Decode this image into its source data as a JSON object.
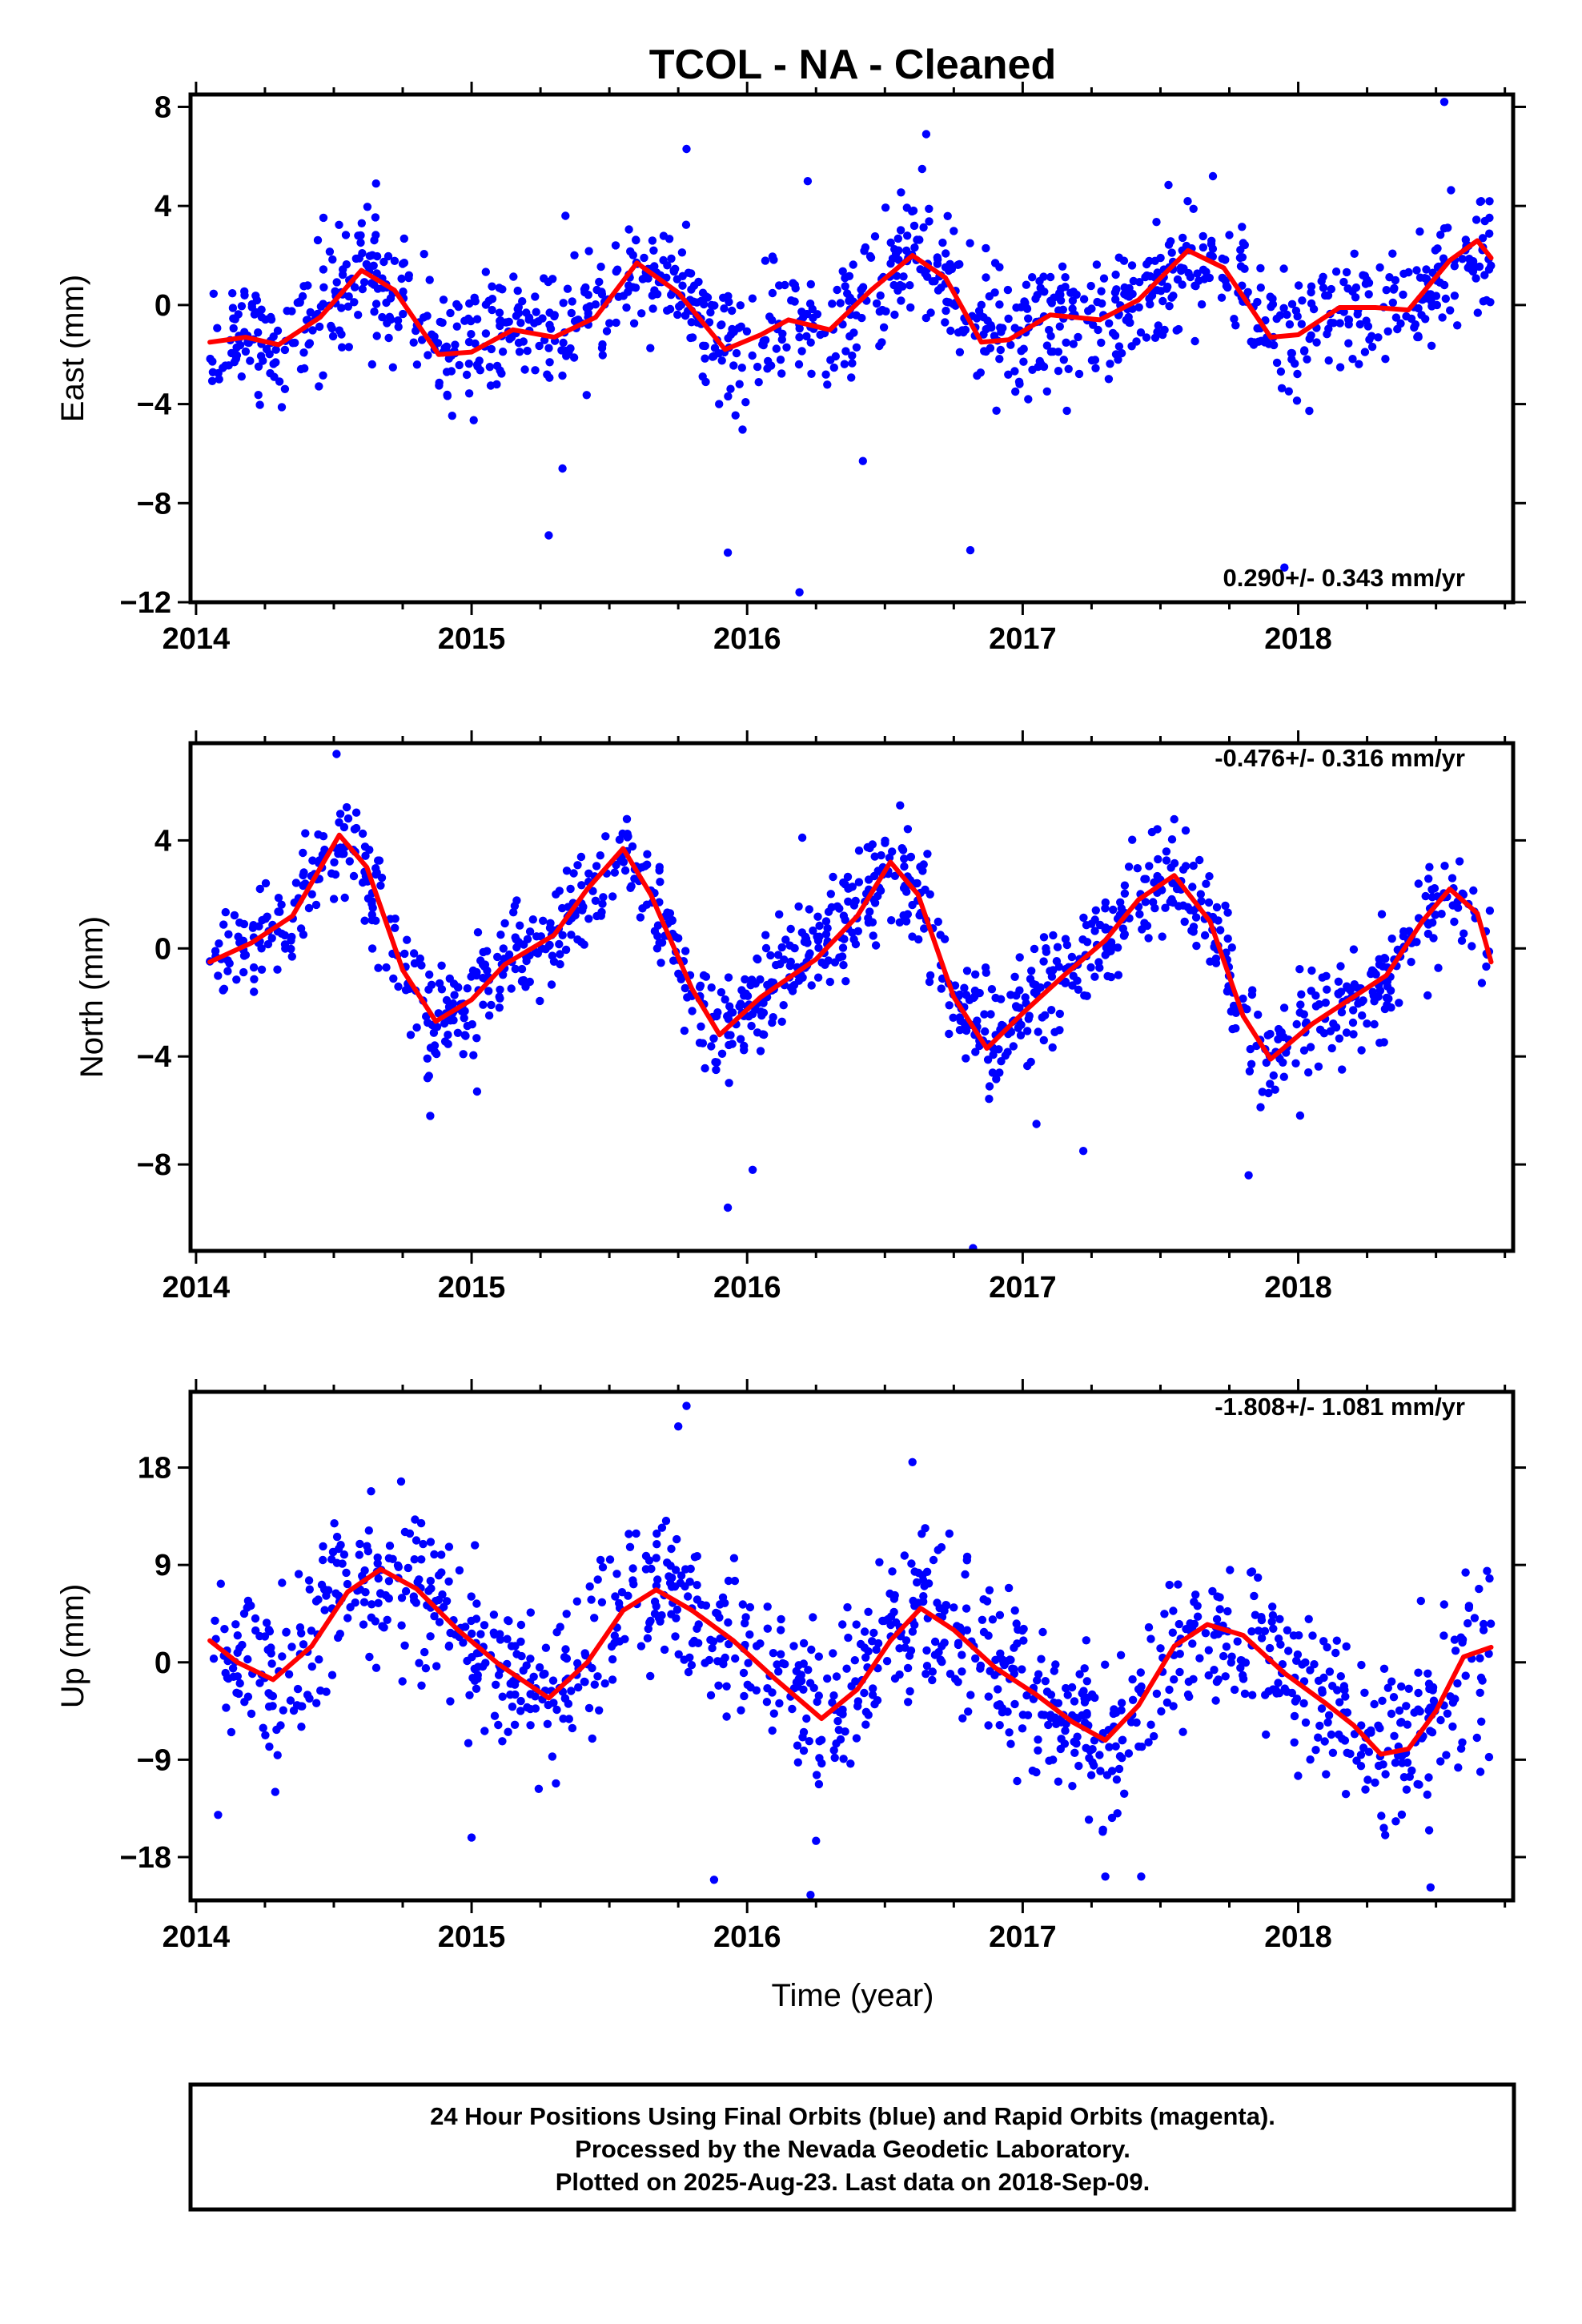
{
  "figure": {
    "title": "TCOL  - NA - Cleaned",
    "xlabel": "Time (year)",
    "footer_lines": [
      "24 Hour Positions Using Final Orbits (blue) and Rapid Orbits (magenta).",
      "Processed by the Nevada Geodetic Laboratory.",
      "Plotted on 2025-Aug-23. Last data on 2018-Sep-09."
    ]
  },
  "colors": {
    "points": "#0000ff",
    "fit": "#ff0000",
    "axes": "#000000"
  },
  "chart_data": [
    {
      "type": "scatter",
      "ylabel": "East (mm)",
      "rate_label": "0.290+/- 0.343 mm/yr",
      "xlim": [
        2013.98,
        2018.78
      ],
      "ylim": [
        -12,
        8.5
      ],
      "xticks": [
        2014,
        2015,
        2016,
        2017,
        2018
      ],
      "yticks": [
        -12,
        -8,
        -4,
        0,
        4,
        8
      ],
      "ytick_labels": [
        "−12",
        "−8",
        "−4",
        "0",
        "4",
        "8"
      ],
      "series": [
        {
          "style": "points",
          "x_start": 2014.05,
          "x_end": 2018.7,
          "seed": 11,
          "noise_sd": 1.25,
          "count": 1250,
          "outliers": [
            [
              2015.28,
              -9.3
            ],
            [
              2015.93,
              -10.0
            ],
            [
              2016.19,
              -11.6
            ],
            [
              2016.81,
              -9.9
            ],
            [
              2017.95,
              -10.6
            ],
            [
              2018.53,
              8.2
            ],
            [
              2016.22,
              5.0
            ],
            [
              2015.78,
              6.3
            ],
            [
              2016.65,
              6.9
            ],
            [
              2015.33,
              -6.6
            ],
            [
              2016.42,
              -6.3
            ]
          ]
        },
        {
          "style": "line",
          "knots": [
            [
              2014.05,
              -1.5
            ],
            [
              2014.18,
              -1.3
            ],
            [
              2014.3,
              -1.6
            ],
            [
              2014.45,
              -0.5
            ],
            [
              2014.6,
              1.4
            ],
            [
              2014.72,
              0.6
            ],
            [
              2014.88,
              -2.0
            ],
            [
              2015.0,
              -1.9
            ],
            [
              2015.15,
              -1.0
            ],
            [
              2015.3,
              -1.3
            ],
            [
              2015.45,
              -0.5
            ],
            [
              2015.6,
              1.7
            ],
            [
              2015.75,
              0.5
            ],
            [
              2015.92,
              -1.8
            ],
            [
              2016.05,
              -1.2
            ],
            [
              2016.15,
              -0.6
            ],
            [
              2016.3,
              -1.0
            ],
            [
              2016.45,
              0.6
            ],
            [
              2016.6,
              2.0
            ],
            [
              2016.72,
              1.1
            ],
            [
              2016.85,
              -1.5
            ],
            [
              2016.95,
              -1.4
            ],
            [
              2017.1,
              -0.4
            ],
            [
              2017.28,
              -0.6
            ],
            [
              2017.42,
              0.2
            ],
            [
              2017.6,
              2.2
            ],
            [
              2017.73,
              1.5
            ],
            [
              2017.9,
              -1.3
            ],
            [
              2018.0,
              -1.2
            ],
            [
              2018.15,
              -0.1
            ],
            [
              2018.28,
              -0.1
            ],
            [
              2018.4,
              -0.2
            ],
            [
              2018.55,
              1.8
            ],
            [
              2018.65,
              2.6
            ],
            [
              2018.7,
              1.9
            ]
          ]
        }
      ]
    },
    {
      "type": "scatter",
      "ylabel": "North (mm)",
      "rate_label": "-0.476+/- 0.316 mm/yr",
      "xlim": [
        2013.98,
        2018.78
      ],
      "ylim": [
        -11.2,
        7.6
      ],
      "xticks": [
        2014,
        2015,
        2016,
        2017,
        2018
      ],
      "yticks": [
        -8,
        -4,
        0,
        4
      ],
      "ytick_labels": [
        "−8",
        "−4",
        "0",
        "4"
      ],
      "series": [
        {
          "style": "points",
          "x_start": 2014.05,
          "x_end": 2018.7,
          "seed": 23,
          "noise_sd": 0.95,
          "count": 1250,
          "outliers": [
            [
              2014.51,
              7.2
            ],
            [
              2015.93,
              -9.6
            ],
            [
              2016.82,
              -11.1
            ],
            [
              2017.22,
              -7.5
            ],
            [
              2016.02,
              -8.2
            ],
            [
              2017.82,
              -8.4
            ],
            [
              2014.85,
              -6.2
            ],
            [
              2015.02,
              -5.3
            ],
            [
              2016.2,
              4.1
            ],
            [
              2017.05,
              -6.5
            ]
          ]
        },
        {
          "style": "line",
          "knots": [
            [
              2014.05,
              -0.5
            ],
            [
              2014.2,
              0.2
            ],
            [
              2014.35,
              1.2
            ],
            [
              2014.52,
              4.2
            ],
            [
              2014.62,
              3.0
            ],
            [
              2014.75,
              -0.8
            ],
            [
              2014.87,
              -2.7
            ],
            [
              2015.0,
              -1.9
            ],
            [
              2015.12,
              -0.6
            ],
            [
              2015.3,
              0.5
            ],
            [
              2015.42,
              2.2
            ],
            [
              2015.55,
              3.7
            ],
            [
              2015.65,
              2.0
            ],
            [
              2015.8,
              -1.5
            ],
            [
              2015.9,
              -3.2
            ],
            [
              2016.05,
              -1.8
            ],
            [
              2016.25,
              -0.4
            ],
            [
              2016.4,
              1.2
            ],
            [
              2016.52,
              3.2
            ],
            [
              2016.62,
              2.0
            ],
            [
              2016.75,
              -1.8
            ],
            [
              2016.87,
              -3.7
            ],
            [
              2017.0,
              -2.4
            ],
            [
              2017.15,
              -1.0
            ],
            [
              2017.3,
              0.3
            ],
            [
              2017.42,
              1.8
            ],
            [
              2017.55,
              2.7
            ],
            [
              2017.68,
              1.0
            ],
            [
              2017.8,
              -2.5
            ],
            [
              2017.9,
              -4.1
            ],
            [
              2018.05,
              -2.8
            ],
            [
              2018.2,
              -1.8
            ],
            [
              2018.32,
              -1.0
            ],
            [
              2018.45,
              1.0
            ],
            [
              2018.55,
              2.2
            ],
            [
              2018.65,
              1.3
            ],
            [
              2018.7,
              -0.5
            ]
          ]
        }
      ]
    },
    {
      "type": "scatter",
      "ylabel": "Up (mm)",
      "rate_label": "-1.808+/- 1.081 mm/yr",
      "xlim": [
        2013.98,
        2018.78
      ],
      "ylim": [
        -22,
        25
      ],
      "xticks": [
        2014,
        2015,
        2016,
        2017,
        2018
      ],
      "yticks": [
        -18,
        -9,
        0,
        9,
        18
      ],
      "ytick_labels": [
        "−18",
        "−9",
        "0",
        "9",
        "18"
      ],
      "series": [
        {
          "style": "points",
          "x_start": 2014.05,
          "x_end": 2018.7,
          "seed": 37,
          "noise_sd": 3.6,
          "count": 1250,
          "outliers": [
            [
              2015.78,
              23.7
            ],
            [
              2015.75,
              21.8
            ],
            [
              2015.88,
              -20.1
            ],
            [
              2016.23,
              -21.5
            ],
            [
              2016.6,
              18.5
            ],
            [
              2017.3,
              -19.8
            ],
            [
              2017.43,
              -19.8
            ],
            [
              2018.48,
              -20.8
            ],
            [
              2014.08,
              -14.1
            ],
            [
              2016.25,
              -16.5
            ],
            [
              2015.0,
              -16.2
            ]
          ]
        },
        {
          "style": "line",
          "knots": [
            [
              2014.05,
              2.0
            ],
            [
              2014.15,
              0.0
            ],
            [
              2014.28,
              -1.6
            ],
            [
              2014.42,
              1.5
            ],
            [
              2014.55,
              6.5
            ],
            [
              2014.67,
              8.6
            ],
            [
              2014.8,
              6.8
            ],
            [
              2014.95,
              3.0
            ],
            [
              2015.1,
              -0.2
            ],
            [
              2015.28,
              -3.3
            ],
            [
              2015.42,
              0.0
            ],
            [
              2015.55,
              4.8
            ],
            [
              2015.67,
              6.7
            ],
            [
              2015.8,
              4.8
            ],
            [
              2015.95,
              2.0
            ],
            [
              2016.1,
              -1.5
            ],
            [
              2016.27,
              -5.2
            ],
            [
              2016.4,
              -2.5
            ],
            [
              2016.52,
              2.0
            ],
            [
              2016.63,
              5.0
            ],
            [
              2016.75,
              3.0
            ],
            [
              2016.9,
              -0.5
            ],
            [
              2017.05,
              -3.0
            ],
            [
              2017.18,
              -5.5
            ],
            [
              2017.3,
              -7.2
            ],
            [
              2017.42,
              -4.0
            ],
            [
              2017.55,
              1.5
            ],
            [
              2017.67,
              3.5
            ],
            [
              2017.8,
              2.5
            ],
            [
              2017.95,
              -1.0
            ],
            [
              2018.1,
              -3.8
            ],
            [
              2018.2,
              -5.8
            ],
            [
              2018.3,
              -8.5
            ],
            [
              2018.4,
              -8.0
            ],
            [
              2018.5,
              -4.5
            ],
            [
              2018.6,
              0.5
            ],
            [
              2018.7,
              1.4
            ]
          ]
        }
      ]
    }
  ]
}
